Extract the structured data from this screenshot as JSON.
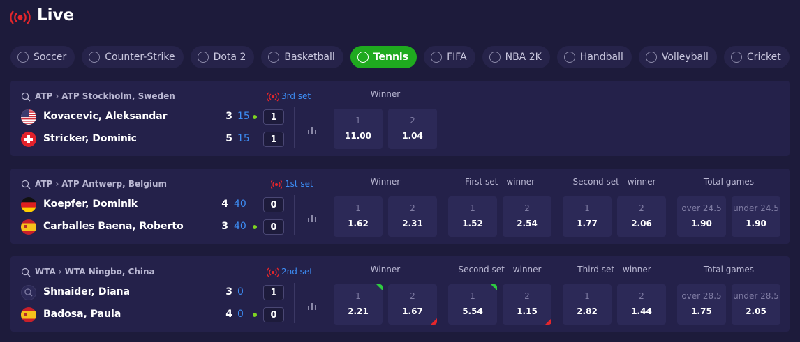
{
  "header": {
    "title": "Live"
  },
  "tabs": [
    "Soccer",
    "Counter-Strike",
    "Dota 2",
    "Basketball",
    "Tennis",
    "FIFA",
    "NBA 2K",
    "Handball",
    "Volleyball",
    "Cricket"
  ],
  "active_tab": 4,
  "matches": [
    {
      "tour": "ATP",
      "tournament": "ATP Stockholm, Sweden",
      "status": "3rd set",
      "players": [
        {
          "name": "Kovacevic, Aleksandar",
          "flag": "us",
          "games": "3",
          "points": "15",
          "serving": true,
          "sets": "1"
        },
        {
          "name": "Stricker, Dominic",
          "flag": "ch",
          "games": "5",
          "points": "15",
          "serving": false,
          "sets": "1"
        }
      ],
      "markets": [
        {
          "title": "Winner",
          "odds": [
            {
              "label": "1",
              "value": "11.00"
            },
            {
              "label": "2",
              "value": "1.04"
            }
          ]
        }
      ]
    },
    {
      "tour": "ATP",
      "tournament": "ATP Antwerp, Belgium",
      "status": "1st set",
      "players": [
        {
          "name": "Koepfer, Dominik",
          "flag": "de",
          "games": "4",
          "points": "40",
          "serving": false,
          "sets": "0"
        },
        {
          "name": "Carballes Baena, Roberto",
          "flag": "es",
          "games": "3",
          "points": "40",
          "serving": true,
          "sets": "0"
        }
      ],
      "markets": [
        {
          "title": "Winner",
          "odds": [
            {
              "label": "1",
              "value": "1.62"
            },
            {
              "label": "2",
              "value": "2.31"
            }
          ]
        },
        {
          "title": "First set - winner",
          "odds": [
            {
              "label": "1",
              "value": "1.52"
            },
            {
              "label": "2",
              "value": "2.54"
            }
          ]
        },
        {
          "title": "Second set - winner",
          "odds": [
            {
              "label": "1",
              "value": "1.77"
            },
            {
              "label": "2",
              "value": "2.06"
            }
          ]
        },
        {
          "title": "Total games",
          "odds": [
            {
              "label": "over 24.5",
              "value": "1.90"
            },
            {
              "label": "under 24.5",
              "value": "1.90"
            }
          ]
        }
      ]
    },
    {
      "tour": "WTA",
      "tournament": "WTA Ningbo, China",
      "status": "2nd set",
      "players": [
        {
          "name": "Shnaider, Diana",
          "flag": "none",
          "games": "3",
          "points": "0",
          "serving": false,
          "sets": "1"
        },
        {
          "name": "Badosa, Paula",
          "flag": "es",
          "games": "4",
          "points": "0",
          "serving": true,
          "sets": "0"
        }
      ],
      "markets": [
        {
          "title": "Winner",
          "odds": [
            {
              "label": "1",
              "value": "2.21",
              "trend": "up"
            },
            {
              "label": "2",
              "value": "1.67",
              "trend": "down"
            }
          ]
        },
        {
          "title": "Second set - winner",
          "odds": [
            {
              "label": "1",
              "value": "5.54",
              "trend": "up"
            },
            {
              "label": "2",
              "value": "1.15",
              "trend": "down"
            }
          ]
        },
        {
          "title": "Third set - winner",
          "odds": [
            {
              "label": "1",
              "value": "2.82"
            },
            {
              "label": "2",
              "value": "1.44"
            }
          ]
        },
        {
          "title": "Total games",
          "odds": [
            {
              "label": "over 28.5",
              "value": "1.75"
            },
            {
              "label": "under 28.5",
              "value": "2.05"
            }
          ]
        }
      ]
    }
  ]
}
